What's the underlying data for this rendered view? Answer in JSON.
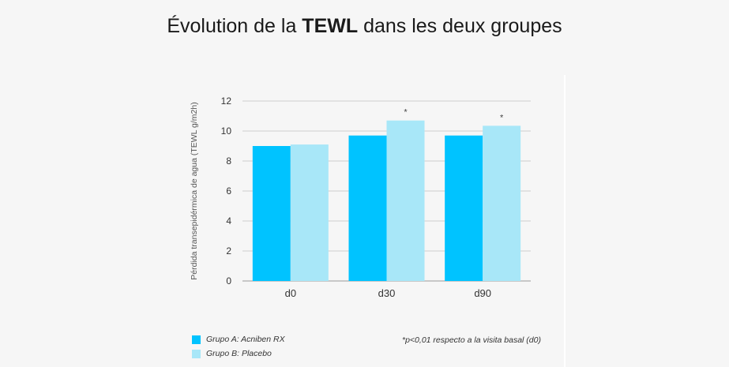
{
  "title": {
    "prefix": "Évolution de la ",
    "bold": "TEWL",
    "suffix": " dans les deux groupes"
  },
  "colors": {
    "group_a": "#00c3ff",
    "group_b": "#a8e7f8",
    "grid": "#cfcfcf",
    "axis": "#9a9a9a"
  },
  "chart_data": {
    "type": "bar",
    "categories": [
      "d0",
      "d30",
      "d90"
    ],
    "series": [
      {
        "name": "Grupo A: Acniben RX",
        "values": [
          9.0,
          9.7,
          9.7
        ],
        "annotations": [
          "",
          "",
          ""
        ]
      },
      {
        "name": "Grupo B: Placebo",
        "values": [
          9.1,
          10.7,
          10.35
        ],
        "annotations": [
          "",
          "*",
          "*"
        ]
      }
    ],
    "ylabel": "Pérdida transepidérmica de agua (TEWL g/m2h)",
    "xlabel": "",
    "ylim": [
      0,
      12
    ],
    "yticks": [
      0,
      2,
      4,
      6,
      8,
      10,
      12
    ],
    "grid": true,
    "legend_position": "bottom-left"
  },
  "footnote": "*p<0,01 respecto a la visita basal (d0)"
}
